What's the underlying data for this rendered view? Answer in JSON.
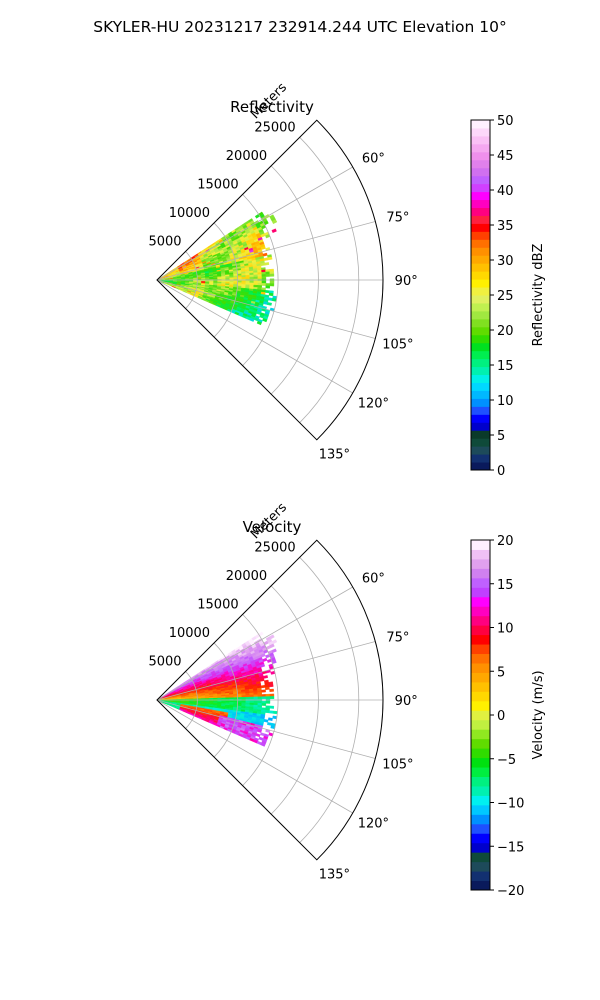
{
  "figure_title": "SKYLER-HU  20231217  232914.244 UTC Elevation 10°",
  "chart_data": [
    {
      "type": "heatmap",
      "title": "Reflectivity",
      "radial_axis_label": "Meters",
      "radial_ticks": [
        "5000",
        "10000",
        "15000",
        "20000",
        "25000"
      ],
      "radial_tick_values": [
        5000,
        10000,
        15000,
        20000,
        25000
      ],
      "radial_range": [
        0,
        28000
      ],
      "azimuth_ticks": [
        "60°",
        "75°",
        "90°",
        "105°",
        "120°",
        "135°"
      ],
      "azimuth_tick_values": [
        60,
        75,
        90,
        105,
        120,
        135
      ],
      "azimuth_range": [
        45,
        135
      ],
      "grid": true,
      "colorbar": {
        "label": "Reflectivity dBZ",
        "range": [
          0,
          50
        ],
        "tick_labels": [
          "0",
          "5",
          "10",
          "15",
          "20",
          "25",
          "30",
          "35",
          "40",
          "45",
          "50"
        ],
        "tick_values": [
          0,
          5,
          10,
          15,
          20,
          25,
          30,
          35,
          40,
          45,
          50
        ],
        "colors": [
          "#0a1a5c",
          "#123070",
          "#1d4a5a",
          "#0f4a3a",
          "#0a3a2a",
          "#0000cc",
          "#0000ff",
          "#1e50ff",
          "#0090ff",
          "#00b8ff",
          "#00d8ff",
          "#00f0e8",
          "#00f0b0",
          "#00f080",
          "#00ee50",
          "#00e020",
          "#30dc00",
          "#60dc00",
          "#80e020",
          "#a0e840",
          "#c0f050",
          "#e0f060",
          "#f0f040",
          "#fff000",
          "#ffd800",
          "#ffc000",
          "#ffa800",
          "#ff9000",
          "#ff7000",
          "#ff4000",
          "#ff0000",
          "#ff2040",
          "#ff0080",
          "#ff00c0",
          "#ff00ff",
          "#d040ff",
          "#c060ff",
          "#d070f0",
          "#e080ec",
          "#ef90ec",
          "#f5a8f0",
          "#fac0f5",
          "#fdd8fa",
          "#fff0ff"
        ]
      },
      "field_summary": "Echoes 0–17 km, mostly 15–28 dBZ; strongest 30–38 dBZ near 60–75° azimuth"
    },
    {
      "type": "heatmap",
      "title": "Velocity",
      "radial_axis_label": "Meters",
      "radial_ticks": [
        "5000",
        "10000",
        "15000",
        "20000",
        "25000"
      ],
      "radial_tick_values": [
        5000,
        10000,
        15000,
        20000,
        25000
      ],
      "radial_range": [
        0,
        28000
      ],
      "azimuth_ticks": [
        "60°",
        "75°",
        "90°",
        "105°",
        "120°",
        "135°"
      ],
      "azimuth_tick_values": [
        60,
        75,
        90,
        105,
        120,
        135
      ],
      "azimuth_range": [
        45,
        135
      ],
      "grid": true,
      "colorbar": {
        "label": "Velocity (m/s)",
        "range": [
          -20,
          20
        ],
        "tick_labels": [
          "−20",
          "−15",
          "−10",
          "−5",
          "0",
          "5",
          "10",
          "15",
          "20"
        ],
        "tick_values": [
          -20,
          -15,
          -10,
          -5,
          0,
          5,
          10,
          15,
          20
        ],
        "colors": [
          "#0a1a5c",
          "#123070",
          "#1d4a5a",
          "#0f4a3a",
          "#0000cc",
          "#0000ff",
          "#1e50ff",
          "#0090ff",
          "#00c8ff",
          "#00f0f0",
          "#00f0b0",
          "#00f080",
          "#00ee40",
          "#00e010",
          "#30dc00",
          "#60dc00",
          "#90e820",
          "#c0f040",
          "#e0f040",
          "#fff000",
          "#ffd800",
          "#ffc000",
          "#ffa800",
          "#ff9000",
          "#ff7000",
          "#ff4000",
          "#ff0000",
          "#ff0040",
          "#ff0080",
          "#ff00c0",
          "#ff00ff",
          "#c040ff",
          "#c060ff",
          "#d080f0",
          "#e0a0ee",
          "#f0c0f5",
          "#fff0ff"
        ]
      },
      "field_summary": "Outbound 5–15 m/s north of ~85°, inbound −5 to −12 m/s 85–105°, folded returns near 105–115°"
    }
  ]
}
